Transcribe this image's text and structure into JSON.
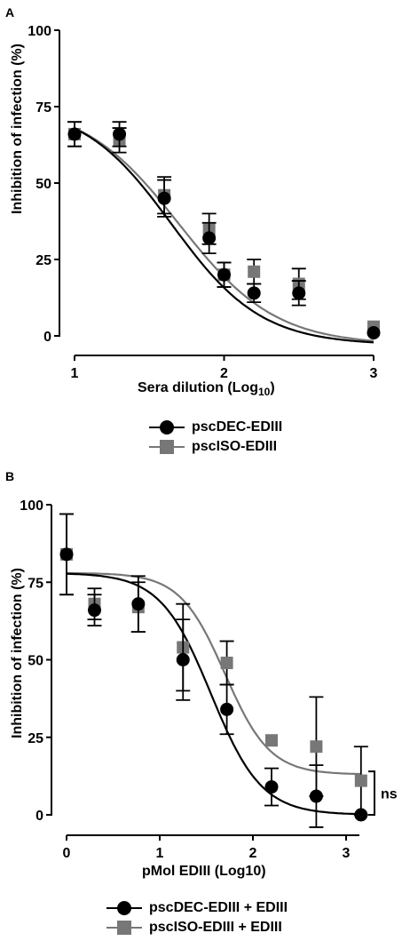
{
  "chart_data": [
    {
      "panel": "A",
      "type": "scatter",
      "xlabel_main": "Sera dilution (Log",
      "xlabel_sub": "10",
      "xlabel_end": ")",
      "ylabel": "Inhibition of infection (%)",
      "xlim": [
        1,
        3
      ],
      "ylim": [
        0,
        100
      ],
      "xticks": [
        "1",
        "2",
        "3"
      ],
      "yticks": [
        "0",
        "25",
        "50",
        "75",
        "100"
      ],
      "series": [
        {
          "name": "pscDEC-EDIII",
          "marker": "circle",
          "color": "#000000",
          "x": [
            1,
            1.3,
            1.6,
            1.9,
            2.0,
            2.2,
            2.5,
            3.0
          ],
          "y": [
            66,
            66,
            45,
            32,
            20,
            14,
            14,
            1
          ],
          "err": [
            4,
            4,
            6,
            5,
            4,
            3,
            4,
            0
          ],
          "fit": {
            "top": 76,
            "bottom": -3,
            "logEC50": 1.65,
            "hill": 1.45
          }
        },
        {
          "name": "pscISO-EDIII",
          "marker": "square",
          "color": "#777777",
          "x": [
            1,
            1.3,
            1.6,
            1.9,
            2.0,
            2.2,
            2.5,
            3.0
          ],
          "y": [
            66,
            64,
            46,
            35,
            20,
            21,
            17,
            3
          ],
          "err": [
            4,
            4,
            6,
            5,
            4,
            4,
            5,
            0
          ],
          "fit": {
            "top": 76,
            "bottom": -3,
            "logEC50": 1.7,
            "hill": 1.35
          }
        }
      ]
    },
    {
      "panel": "B",
      "type": "scatter",
      "xlabel": "pMol EDIII (Log10)",
      "ylabel": "Inhibition of infection (%)",
      "xlim": [
        0,
        3.4
      ],
      "ylim": [
        0,
        100
      ],
      "xticks": [
        "0",
        "1",
        "2",
        "3"
      ],
      "yticks": [
        "0",
        "25",
        "50",
        "75",
        "100"
      ],
      "annotation": "ns",
      "series": [
        {
          "name": "pscDEC-EDIII + EDIII",
          "marker": "circle",
          "color": "#000000",
          "x": [
            0,
            0.3,
            0.77,
            1.25,
            1.72,
            2.2,
            2.68,
            3.16
          ],
          "y": [
            84,
            66,
            68,
            50,
            34,
            9,
            6,
            0
          ],
          "err": [
            13,
            5,
            9,
            13,
            8,
            6,
            10,
            0
          ],
          "fit": {
            "top": 78,
            "bottom": 0,
            "logEC50": 1.55,
            "hill": 1.6
          }
        },
        {
          "name": "pscISO-EDIII + EDIII",
          "marker": "square",
          "color": "#777777",
          "x": [
            0,
            0.3,
            0.77,
            1.25,
            1.72,
            2.2,
            2.68,
            3.16
          ],
          "y": [
            84,
            68,
            67,
            54,
            49,
            24,
            22,
            11
          ],
          "err": [
            13,
            5,
            8,
            14,
            7,
            0,
            16,
            11
          ],
          "fit": {
            "top": 78,
            "bottom": 13,
            "logEC50": 1.7,
            "hill": 1.8
          }
        }
      ]
    }
  ]
}
